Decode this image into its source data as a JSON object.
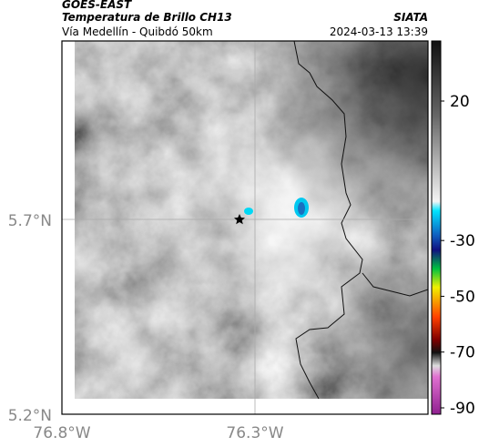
{
  "header": {
    "title": "GOES-EAST",
    "subtitle": "Temperatura de Brillo CH13",
    "route": "Vía Medellín - Quibdó 50km",
    "source": "SIATA",
    "timestamp": "2024-03-13 13:39"
  },
  "axes": {
    "latitude_labels": [
      "5.7°N",
      "5.2°N"
    ],
    "longitude_labels": [
      "76.8°W",
      "76.3°W"
    ]
  },
  "colorbar": {
    "ticks": [
      20,
      -30,
      -50,
      -70,
      -90
    ]
  }
}
